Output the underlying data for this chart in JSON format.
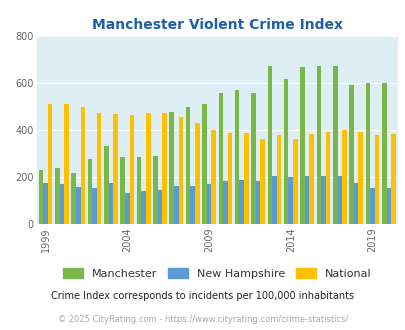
{
  "title": "Manchester Violent Crime Index",
  "years": [
    1999,
    2000,
    2001,
    2002,
    2003,
    2004,
    2005,
    2006,
    2007,
    2008,
    2009,
    2010,
    2011,
    2012,
    2013,
    2014,
    2015,
    2016,
    2017,
    2018,
    2019,
    2020
  ],
  "manchester": [
    230,
    240,
    220,
    280,
    335,
    285,
    285,
    290,
    480,
    500,
    510,
    560,
    570,
    560,
    675,
    620,
    670,
    675,
    675,
    595,
    600,
    600
  ],
  "new_hampshire": [
    175,
    170,
    160,
    155,
    175,
    135,
    140,
    145,
    165,
    165,
    170,
    185,
    190,
    185,
    205,
    200,
    205,
    205,
    205,
    175,
    155,
    155
  ],
  "national": [
    510,
    510,
    500,
    475,
    470,
    465,
    475,
    475,
    455,
    430,
    400,
    390,
    390,
    365,
    380,
    365,
    385,
    395,
    400,
    395,
    380,
    385
  ],
  "manchester_color": "#7ab648",
  "nh_color": "#5b9bd5",
  "national_color": "#ffc000",
  "bg_color": "#ddeef5",
  "title_color": "#1f5fa6",
  "ylim": [
    0,
    800
  ],
  "yticks": [
    0,
    200,
    400,
    600,
    800
  ],
  "subtitle": "Crime Index corresponds to incidents per 100,000 inhabitants",
  "footer": "© 2025 CityRating.com - https://www.cityrating.com/crime-statistics/",
  "subtitle_color": "#222222",
  "footer_color": "#aaaaaa",
  "legend_labels": [
    "Manchester",
    "New Hampshire",
    "National"
  ],
  "bar_width": 0.28,
  "xtick_years": [
    1999,
    2004,
    2009,
    2014,
    2019
  ]
}
